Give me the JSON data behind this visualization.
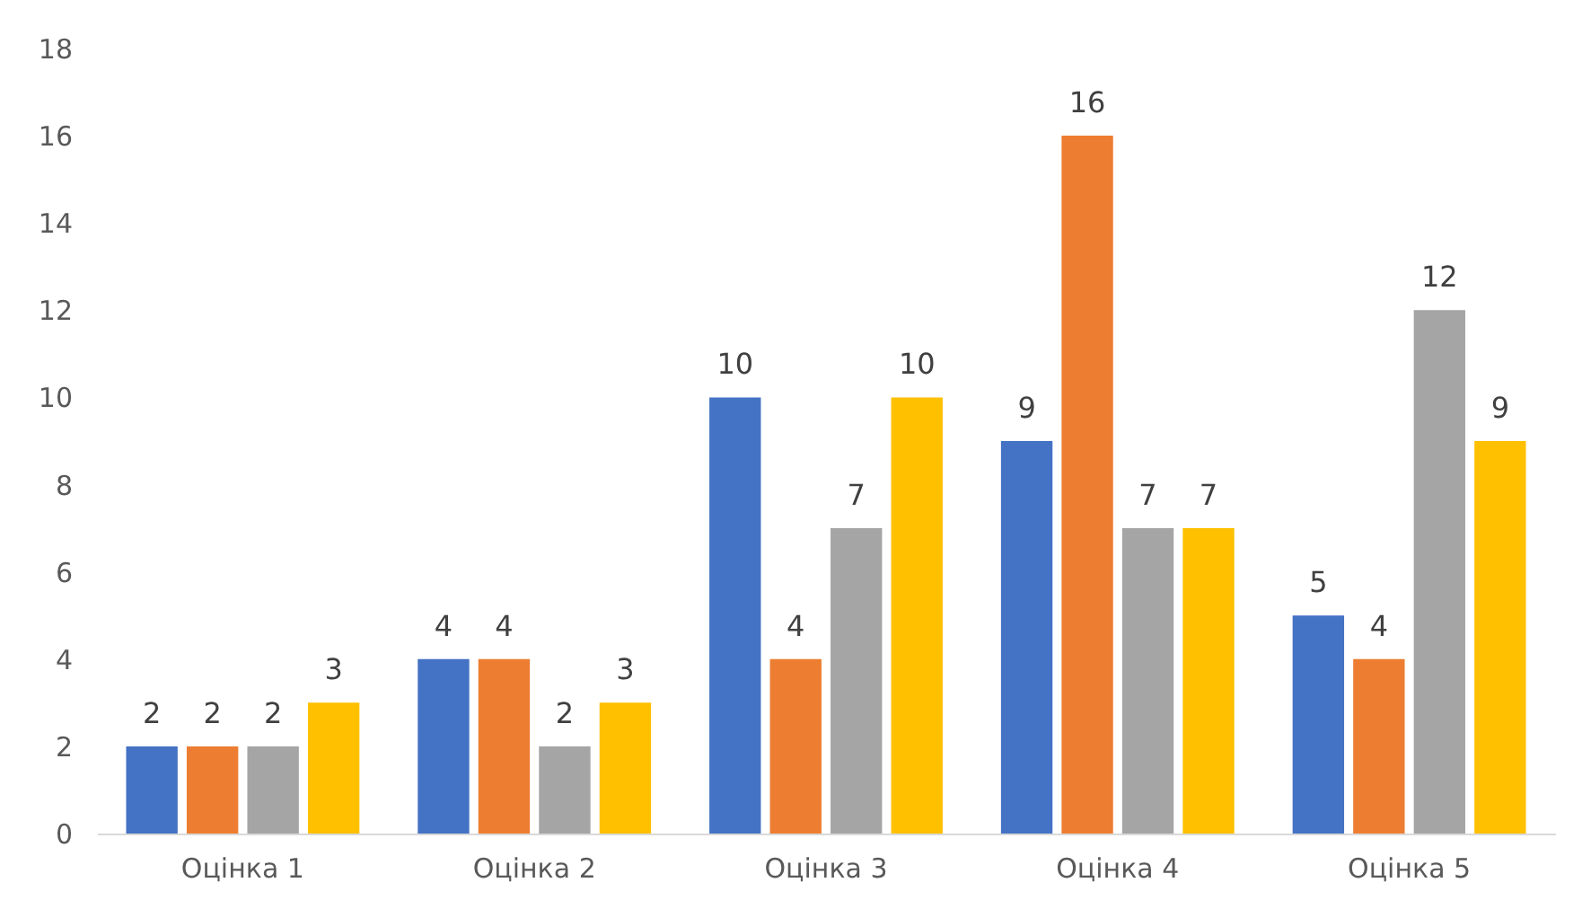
{
  "chart_data": {
    "type": "bar",
    "categories": [
      "Оцінка 1",
      "Оцінка 2",
      "Оцінка 3",
      "Оцінка 4",
      "Оцінка 5"
    ],
    "series": [
      {
        "color": "#4472c4",
        "values": [
          2,
          4,
          10,
          9,
          5
        ]
      },
      {
        "color": "#ed7d31",
        "values": [
          2,
          4,
          4,
          16,
          4
        ]
      },
      {
        "color": "#a5a5a5",
        "values": [
          2,
          2,
          7,
          7,
          12
        ]
      },
      {
        "color": "#ffc000",
        "values": [
          3,
          3,
          10,
          7,
          9
        ]
      }
    ],
    "ylim": [
      0,
      18
    ],
    "yticks": [
      0,
      2,
      4,
      6,
      8,
      10,
      12,
      14,
      16,
      18
    ],
    "grid": false,
    "legend": false,
    "data_labels": true
  }
}
